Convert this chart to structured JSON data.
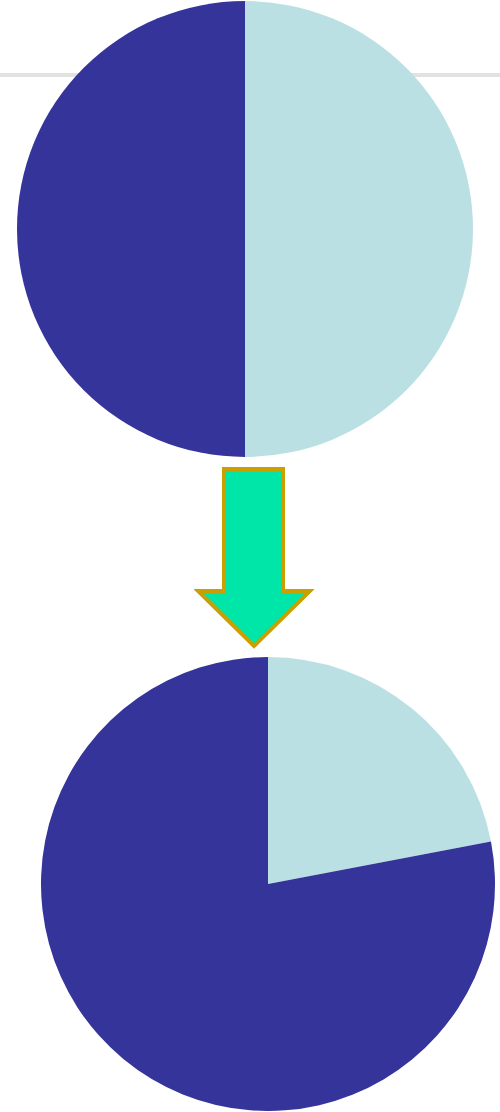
{
  "chart_data": [
    {
      "type": "pie",
      "categories": [
        null,
        null
      ],
      "values": [
        50,
        50
      ],
      "colors": [
        "#bbe0e3",
        "#35349a"
      ]
    },
    {
      "type": "pie",
      "categories": [
        null,
        null
      ],
      "values": [
        22,
        78
      ],
      "colors": [
        "#bbe0e3",
        "#35349a"
      ]
    }
  ]
}
